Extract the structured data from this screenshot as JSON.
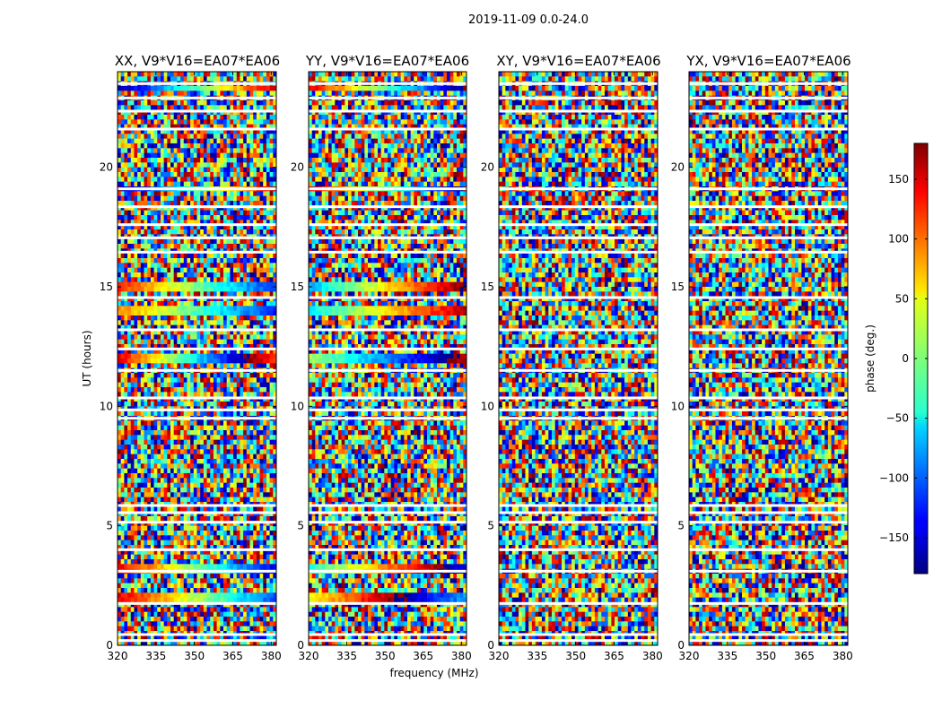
{
  "suptitle": "2019-11-09 0.0-24.0",
  "chart_data": {
    "type": "heatmap",
    "title": "2019-11-09 0.0-24.0",
    "xlabel": "frequency (MHz)",
    "ylabel": "UT (hours)",
    "xlim": [
      320,
      382
    ],
    "ylim": [
      0,
      24
    ],
    "xticks": [
      "320",
      "335",
      "350",
      "365",
      "380"
    ],
    "xtick_values": [
      320,
      335,
      350,
      365,
      380
    ],
    "yticks": [
      "0",
      "5",
      "10",
      "15",
      "20"
    ],
    "ytick_values": [
      0,
      5,
      10,
      15,
      20
    ],
    "colormap": "jet",
    "panels": [
      {
        "title": "XX, V9*V16=EA07*EA06"
      },
      {
        "title": "YY, V9*V16=EA07*EA06"
      },
      {
        "title": "XY, V9*V16=EA07*EA06"
      },
      {
        "title": "YX, V9*V16=EA07*EA06"
      }
    ],
    "colorbar": {
      "label": "phase (deg.)",
      "range": [
        -180,
        180
      ],
      "ticks": [
        "150",
        "100",
        "50",
        "0",
        "−50",
        "−100",
        "−150"
      ],
      "tick_values": [
        150,
        100,
        50,
        0,
        -50,
        -100,
        -150
      ]
    },
    "flagged_ut_hours": [
      0.2,
      0.45,
      1.75,
      3.1,
      4.0,
      5.15,
      5.55,
      5.85,
      9.5,
      9.85,
      10.35,
      11.5,
      12.4,
      13.2,
      14.55,
      16.45,
      17.05,
      17.6,
      18.35,
      19.1,
      21.6,
      22.35,
      22.9,
      23.5
    ]
  }
}
